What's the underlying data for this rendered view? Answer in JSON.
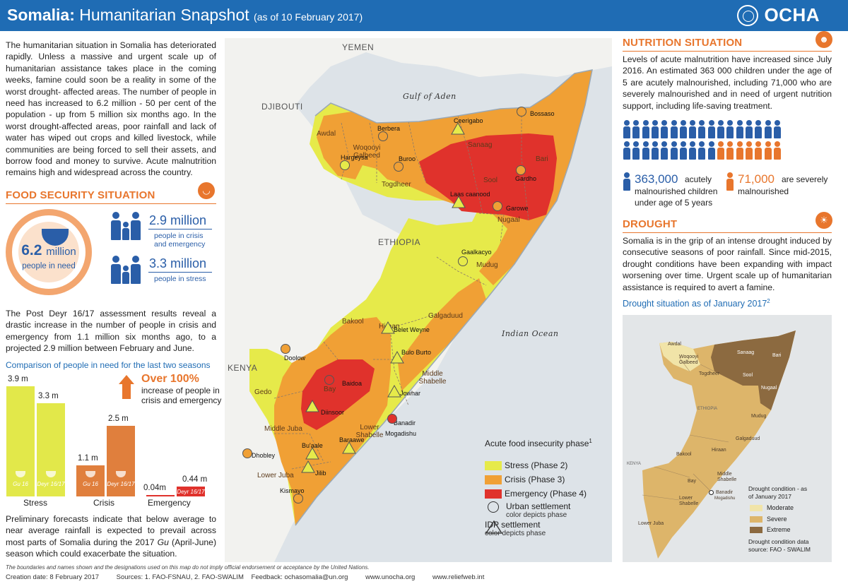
{
  "header": {
    "title_country": "Somalia:",
    "title_main": "Humanitarian Snapshot",
    "title_date": "(as of 10 February 2017)",
    "logo_text": "OCHA"
  },
  "intro_text": "The humanitarian situation in Somalia has deteriorated rapidly. Unless a massive and urgent scale up of humanitarian assistance takes place in the coming weeks, famine could soon be a reality in some of the worst drought- affected areas. The number of people in need has increased to 6.2 million - 50 per cent of the population - up from 5 million six months ago. In the worst drought-affected areas, poor rainfall and lack of water has wiped out crops and killed livestock, while communities are being forced to sell their assets, and borrow food and money to survive. Acute malnutrition remains high and widespread across the country.",
  "food_security": {
    "title": "FOOD SECURITY SITUATION",
    "people_in_need_value": "6.2",
    "people_in_need_unit": "million",
    "people_in_need_label": "people in need",
    "crisis_value": "2.9 million",
    "crisis_label_1": "people in crisis",
    "crisis_label_2": "and emergency",
    "stress_value": "3.3 million",
    "stress_label": "people in stress",
    "postdeyr_text": "The Post Deyr 16/17 assessment results reveal a drastic increase in the number of people in crisis and emergency from 1.1 million six months ago, to a projected 2.9 million between February and June.",
    "comparison_title": "Comparison of people in need for the last two seasons",
    "over_title": "Over 100%",
    "over_text_1": "increase of people in",
    "over_text_2": "crisis and emergency",
    "prelim_text_1": "Preliminary forecasts indicate that below average to near average rainfall is expected to prevail across most parts of Somalia during the 2017 ",
    "prelim_italic": "Gu",
    "prelim_text_2": " (April-June) season which could exacerbate the situation."
  },
  "chart_data": {
    "type": "bar",
    "categories": [
      "Stress",
      "Crisis",
      "Emergency"
    ],
    "series": [
      {
        "name": "Gu 16",
        "values": [
          3.9,
          1.1,
          0.04
        ],
        "labels": [
          "3.9 m",
          "1.1 m",
          "0.04m"
        ]
      },
      {
        "name": "Deyr 16/17",
        "values": [
          3.3,
          2.5,
          0.44
        ],
        "labels": [
          "3.3 m",
          "2.5 m",
          "0.44 m"
        ]
      }
    ],
    "colors": {
      "Stress": [
        "#e2e84a",
        "#e2e84a"
      ],
      "Crisis": [
        "#e07f3d",
        "#e07f3d"
      ],
      "Emergency": [
        "#e0322c",
        "#e0322c"
      ]
    },
    "season_labels": [
      "Gu 16",
      "Deyr 16/17"
    ]
  },
  "map": {
    "countries": [
      "YEMEN",
      "DJIBOUTI",
      "ETHIOPIA",
      "KENYA"
    ],
    "seas": [
      "Gulf of Aden",
      "Indian Ocean"
    ],
    "regions": [
      "Awdal",
      "Woqooyi Galbeed",
      "Togdheer",
      "Sanaag",
      "Bari",
      "Sool",
      "Nugaal",
      "Mudug",
      "Galgaduud",
      "Hiraan",
      "Middle Shabelle",
      "Bakool",
      "Bay",
      "Gedo",
      "Middle Juba",
      "Lower Juba",
      "Lower Shabelle",
      "Banadir"
    ],
    "settlements": [
      "Bossaso",
      "Ceerigabo",
      "Berbera",
      "Hargeysa",
      "Buroo",
      "Gardho",
      "Laas caanood",
      "Garowe",
      "Gaalkacyo",
      "Belet Weyne",
      "Bulo Burto",
      "Jowhar",
      "Doolow",
      "Baidoa",
      "Diinsoor",
      "Mogadishu",
      "Baraawe",
      "Bu'aale",
      "Dhobley",
      "Jilib",
      "Kismayo"
    ],
    "legend": {
      "title": "Acute food insecurity phase",
      "title_sup": "1",
      "stress": "Stress (Phase 2)",
      "crisis": "Crisis (Phase 3)",
      "emergency": "Emergency (Phase 4)",
      "urban": "Urban settlement",
      "urban_sub": "color depicts phase",
      "idp": "IDP settlement",
      "idp_sub": "color depicts phase"
    },
    "colors": {
      "stress": "#e6ea4a",
      "crisis": "#f0a035",
      "emergency": "#e0322c"
    }
  },
  "nutrition": {
    "title": "NUTRITION SITUATION",
    "text": "Levels of acute malnutrition have increased since July 2016. An estimated 363 000 children under the age of 5 are acutely malnourished, including 71,000 who are severely malnourished and in need of urgent nutrition support, including life-saving treatment.",
    "acute_value": "363,000",
    "acute_label_1": "acutely",
    "acute_label_2": "malnourished children",
    "acute_label_3": "under age of 5 years",
    "severe_value": "71,000",
    "severe_label_1": "are severely",
    "severe_label_2": "malnourished",
    "icon_colors": {
      "acute": "#2a5ea8",
      "severe": "#e8762d"
    }
  },
  "drought": {
    "title": "DROUGHT",
    "text": "Somalia is in the grip of an intense drought induced by consecutive seasons of poor rainfall. Since mid-2015, drought conditions have been expanding with impact worsening over time. Urgent scale up of humanitarian assistance is required to avert a famine.",
    "subtitle": "Drought situation as of January 2017",
    "subtitle_sup": "2",
    "legend_title_1": "Drought condition - as",
    "legend_title_2": "of January 2017",
    "moderate": "Moderate",
    "severe": "Severe",
    "extreme": "Extreme",
    "source_1": "Drought condition data",
    "source_2": "source: FAO - SWALIM",
    "country_labels": [
      "ETHIOPIA",
      "KENYA"
    ],
    "region_labels": [
      "Awdal",
      "Woqooyi Galbeed",
      "Togdheer",
      "Sanaag",
      "Bari",
      "Sool",
      "Nugaal",
      "Mudug",
      "Galgaduud",
      "Hiraan",
      "Bakool",
      "Bay",
      "Middle Shabelle",
      "Banadir",
      "Mogadishu",
      "Lower Shabelle",
      "Lower Juba"
    ],
    "colors": {
      "moderate": "#f1e4a8",
      "severe": "#ddb56a",
      "extreme": "#8c6a40"
    }
  },
  "footer": {
    "disclaimer": "The boundaries and names shown and the designations used on this map do not imply official endorsement or acceptance by the United Nations.",
    "creation": "Creation date: 8 February 2017",
    "sources": "Sources: 1. FAO-FSNAU,   2. FAO-SWALIM",
    "feedback": "Feedback: ochasomalia@un.org",
    "site1": "www.unocha.org",
    "site2": "www.reliefweb.int"
  }
}
